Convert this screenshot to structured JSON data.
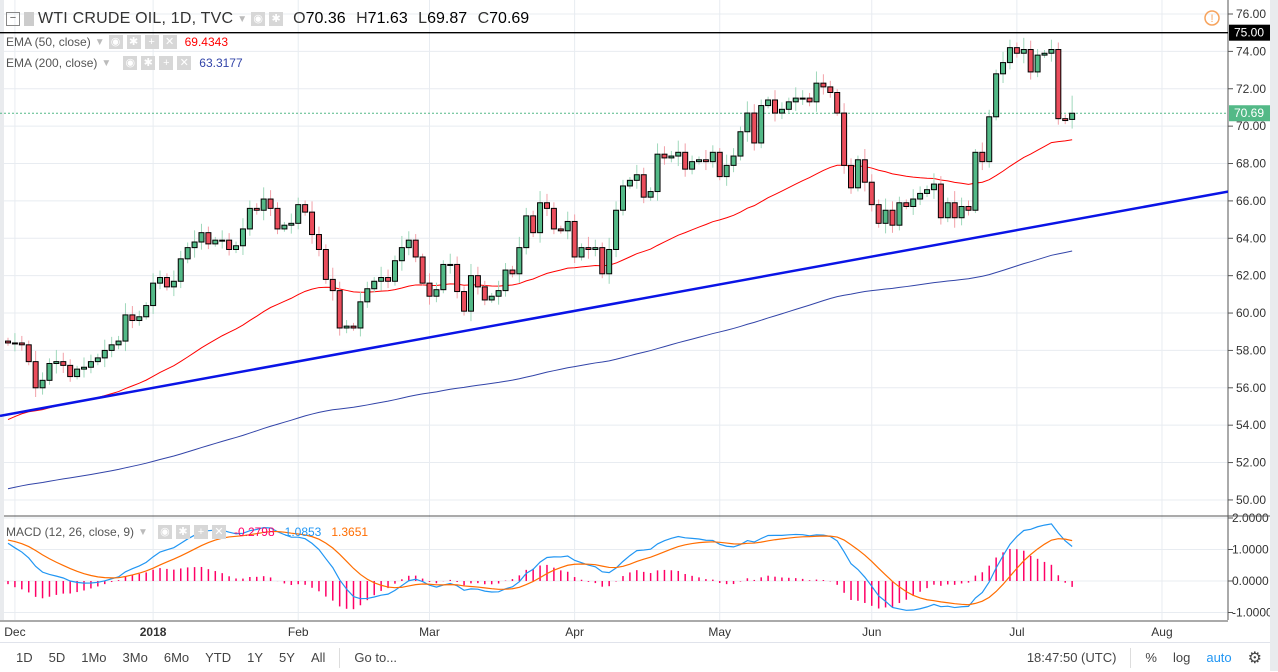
{
  "header": {
    "symbol": "WTI CRUDE OIL, 1D, TVC",
    "open_label": "O",
    "open": "70.36",
    "high_label": "H",
    "high": "71.63",
    "low_label": "L",
    "low": "69.87",
    "close_label": "C",
    "close": "70.69"
  },
  "indicators": [
    {
      "label": "EMA (50, close)",
      "value": "69.4343",
      "color": "#ff0000"
    },
    {
      "label": "EMA (200, close)",
      "value": "63.3177",
      "color": "#3244a8"
    },
    {
      "label": "MACD (12, 26, close, 9)",
      "hist": "-0.2798",
      "macd": "1.0853",
      "signal": "1.3651"
    }
  ],
  "chart_data": {
    "type": "candlestick",
    "title": "WTI CRUDE OIL, 1D, TVC",
    "ylim": [
      49,
      76.8
    ],
    "yticks": [
      "76.00",
      "74.00",
      "72.00",
      "70.00",
      "68.00",
      "66.00",
      "64.00",
      "62.00",
      "60.00",
      "58.00",
      "56.00",
      "54.00",
      "52.00",
      "50.00"
    ],
    "last_price_label": "70.69",
    "alert_line_label": "75.00",
    "alert_line": 75.0,
    "last_candle": {
      "open": 70.36,
      "high": 71.63,
      "low": 69.87,
      "close": 70.69
    },
    "close": [
      58.4,
      58.4,
      58.3,
      57.4,
      56.0,
      56.4,
      57.3,
      57.4,
      57.2,
      56.6,
      57.0,
      57.1,
      57.4,
      57.6,
      58.0,
      58.3,
      58.5,
      59.9,
      59.6,
      59.8,
      60.4,
      61.6,
      61.9,
      61.4,
      61.7,
      62.9,
      63.5,
      63.8,
      64.3,
      63.7,
      63.9,
      63.9,
      63.4,
      63.6,
      64.5,
      65.6,
      65.5,
      66.1,
      65.6,
      64.5,
      64.7,
      64.8,
      65.8,
      65.4,
      64.2,
      63.4,
      61.8,
      61.2,
      59.2,
      59.3,
      59.2,
      60.6,
      61.3,
      61.7,
      61.9,
      61.7,
      62.8,
      63.5,
      63.9,
      63.0,
      61.6,
      60.9,
      61.25,
      62.6,
      62.6,
      61.15,
      60.1,
      62.0,
      61.4,
      60.7,
      60.9,
      61.2,
      62.3,
      62.1,
      63.5,
      65.2,
      64.3,
      65.9,
      65.6,
      64.5,
      64.4,
      64.9,
      63.0,
      63.5,
      63.4,
      63.5,
      62.1,
      63.4,
      65.5,
      66.8,
      67.1,
      67.4,
      66.2,
      66.5,
      68.5,
      68.3,
      68.4,
      68.6,
      67.7,
      68.1,
      68.2,
      68.1,
      68.6,
      67.3,
      67.9,
      68.4,
      69.7,
      70.7,
      69.1,
      71.1,
      71.4,
      70.7,
      70.9,
      71.3,
      71.5,
      71.5,
      71.3,
      72.3,
      72.1,
      71.8,
      70.7,
      67.9,
      66.7,
      68.2,
      67.0,
      65.8,
      64.8,
      65.5,
      64.7,
      65.9,
      65.7,
      66.1,
      66.4,
      66.6,
      66.9,
      65.1,
      65.9,
      65.1,
      65.7,
      65.5,
      68.6,
      68.1,
      70.5,
      72.8,
      73.4,
      74.2,
      73.9,
      74.1,
      72.9,
      73.8,
      73.9,
      74.1,
      70.4,
      70.3,
      70.69
    ],
    "ema50_start": 54.3,
    "ema200_start": 50.6,
    "ema200_end": 63.3177,
    "trendline": {
      "start_price": 54.5,
      "end_price": 66.5,
      "color": "#0a14e6"
    },
    "macd": {
      "yticks": [
        "2.0000",
        "1.0000",
        "0.0000",
        "-1.0000"
      ],
      "ylim": [
        -1.2,
        2.05
      ],
      "start_macd": 1.2,
      "start_signal": 1.3
    },
    "x_labels": [
      {
        "label": "Dec",
        "index": 1
      },
      {
        "label": "2018",
        "index": 21
      },
      {
        "label": "Feb",
        "index": 42
      },
      {
        "label": "Mar",
        "index": 61
      },
      {
        "label": "Apr",
        "index": 82
      },
      {
        "label": "May",
        "index": 103
      },
      {
        "label": "Jun",
        "index": 125
      },
      {
        "label": "Jul",
        "index": 146
      },
      {
        "label": "Aug",
        "index": 167
      }
    ],
    "colors": {
      "up": "#53b987",
      "down": "#eb4d5c",
      "ema50": "#ff0000",
      "ema200": "#3244a8",
      "macd": "#2196f3",
      "signal": "#ff6d00",
      "hist": "#ff0066"
    }
  },
  "toolbar": {
    "ranges": [
      "1D",
      "5D",
      "1Mo",
      "3Mo",
      "6Mo",
      "YTD",
      "1Y",
      "5Y",
      "All"
    ],
    "goto": "Go to...",
    "time": "18:47:50 (UTC)",
    "percent": "%",
    "log": "log",
    "auto": "auto"
  }
}
